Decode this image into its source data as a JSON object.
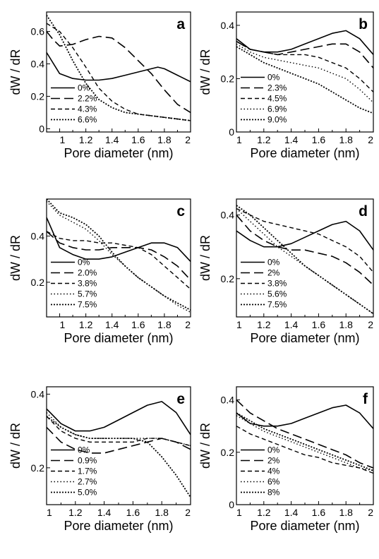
{
  "chart_data": [
    {
      "type": "line",
      "panel": "a",
      "xlabel": "Pore diameter (nm)",
      "ylabel": "dW / dR",
      "xlim": [
        0.9,
        2.0
      ],
      "ylim": [
        -0.02,
        0.72
      ],
      "x_ticks": [
        1,
        1.2,
        1.4,
        1.6,
        1.8,
        2
      ],
      "x_tick_labels": [
        "1",
        "1.2",
        "1.4",
        "1.6",
        "1.8",
        "2"
      ],
      "y_ticks": [
        0,
        0.2,
        0.4,
        0.6
      ],
      "y_tick_labels": [
        "0",
        "0.2",
        "0.4",
        "0.6"
      ],
      "legend_position": "bottom-left",
      "series": [
        {
          "name": "0%",
          "style": "solid",
          "x": [
            0.9,
            1.0,
            1.1,
            1.2,
            1.3,
            1.4,
            1.5,
            1.6,
            1.7,
            1.75,
            1.8,
            1.9,
            2.0
          ],
          "y": [
            0.47,
            0.34,
            0.31,
            0.3,
            0.3,
            0.31,
            0.33,
            0.35,
            0.37,
            0.38,
            0.37,
            0.33,
            0.29
          ]
        },
        {
          "name": "2.2%",
          "style": "long-dash",
          "x": [
            0.9,
            0.95,
            1.0,
            1.1,
            1.2,
            1.3,
            1.4,
            1.5,
            1.6,
            1.7,
            1.8,
            1.9,
            2.0
          ],
          "y": [
            0.6,
            0.55,
            0.51,
            0.52,
            0.55,
            0.57,
            0.56,
            0.5,
            0.42,
            0.34,
            0.24,
            0.15,
            0.1
          ]
        },
        {
          "name": "4.3%",
          "style": "short-dash",
          "x": [
            0.9,
            1.0,
            1.1,
            1.2,
            1.3,
            1.4,
            1.5,
            1.6,
            1.7,
            1.8,
            1.9,
            2.0
          ],
          "y": [
            0.65,
            0.6,
            0.5,
            0.38,
            0.25,
            0.17,
            0.12,
            0.09,
            0.08,
            0.07,
            0.06,
            0.05
          ]
        },
        {
          "name": "6.6%",
          "style": "dotted",
          "x": [
            0.9,
            1.0,
            1.1,
            1.2,
            1.3,
            1.4,
            1.5,
            1.6,
            1.7,
            1.8,
            1.9,
            2.0
          ],
          "y": [
            0.7,
            0.58,
            0.42,
            0.28,
            0.18,
            0.13,
            0.1,
            0.09,
            0.08,
            0.07,
            0.06,
            0.05
          ]
        }
      ]
    },
    {
      "type": "line",
      "panel": "b",
      "xlabel": "Pore diameter (nm)",
      "ylabel": "dW / dR",
      "xlim": [
        1.0,
        2.0
      ],
      "ylim": [
        0.0,
        0.45
      ],
      "x_ticks": [
        1,
        1.2,
        1.4,
        1.6,
        1.8,
        2
      ],
      "x_tick_labels": [
        "1",
        "1.2",
        "1.4",
        "1.6",
        "1.8",
        "2"
      ],
      "y_ticks": [
        0,
        0.2,
        0.4
      ],
      "y_tick_labels": [
        "0",
        "0.2",
        "0.4"
      ],
      "legend_position": "bottom-left",
      "series": [
        {
          "name": "0%",
          "style": "solid",
          "x": [
            1.0,
            1.1,
            1.2,
            1.3,
            1.4,
            1.5,
            1.6,
            1.7,
            1.8,
            1.9,
            2.0
          ],
          "y": [
            0.35,
            0.31,
            0.3,
            0.3,
            0.31,
            0.33,
            0.35,
            0.37,
            0.38,
            0.35,
            0.29
          ]
        },
        {
          "name": "2.3%",
          "style": "long-dash",
          "x": [
            1.0,
            1.1,
            1.2,
            1.3,
            1.4,
            1.5,
            1.6,
            1.7,
            1.8,
            1.9,
            2.0
          ],
          "y": [
            0.34,
            0.31,
            0.3,
            0.29,
            0.3,
            0.31,
            0.32,
            0.33,
            0.33,
            0.3,
            0.24
          ]
        },
        {
          "name": "4.5%",
          "style": "short-dash",
          "x": [
            1.0,
            1.1,
            1.2,
            1.3,
            1.4,
            1.5,
            1.6,
            1.7,
            1.8,
            1.9,
            2.0
          ],
          "y": [
            0.34,
            0.31,
            0.3,
            0.29,
            0.29,
            0.29,
            0.28,
            0.26,
            0.24,
            0.2,
            0.15
          ]
        },
        {
          "name": "6.9%",
          "style": "fine-dot",
          "x": [
            1.0,
            1.1,
            1.2,
            1.3,
            1.4,
            1.5,
            1.6,
            1.7,
            1.8,
            1.9,
            2.0
          ],
          "y": [
            0.33,
            0.3,
            0.28,
            0.27,
            0.26,
            0.25,
            0.24,
            0.22,
            0.2,
            0.16,
            0.11
          ]
        },
        {
          "name": "9.0%",
          "style": "dotted",
          "x": [
            1.0,
            1.1,
            1.2,
            1.3,
            1.4,
            1.5,
            1.6,
            1.7,
            1.8,
            1.9,
            2.0
          ],
          "y": [
            0.32,
            0.29,
            0.26,
            0.24,
            0.22,
            0.2,
            0.18,
            0.15,
            0.12,
            0.09,
            0.07
          ]
        }
      ]
    },
    {
      "type": "line",
      "panel": "c",
      "xlabel": "Pore diameter (nm)",
      "ylabel": "dW / dR",
      "xlim": [
        0.9,
        2.0
      ],
      "ylim": [
        0.05,
        0.56
      ],
      "x_ticks": [
        1,
        1.2,
        1.4,
        1.6,
        1.8,
        2
      ],
      "x_tick_labels": [
        "1",
        "1.2",
        "1.4",
        "1.6",
        "1.8",
        "2"
      ],
      "y_ticks": [
        0.2,
        0.4
      ],
      "y_tick_labels": [
        "0.2",
        "0.4"
      ],
      "legend_position": "bottom-left",
      "series": [
        {
          "name": "0%",
          "style": "solid",
          "x": [
            0.9,
            1.0,
            1.1,
            1.2,
            1.3,
            1.4,
            1.5,
            1.6,
            1.7,
            1.8,
            1.9,
            2.0
          ],
          "y": [
            0.48,
            0.35,
            0.32,
            0.3,
            0.3,
            0.31,
            0.33,
            0.35,
            0.37,
            0.37,
            0.35,
            0.29
          ]
        },
        {
          "name": "2.0%",
          "style": "long-dash",
          "x": [
            0.9,
            1.0,
            1.1,
            1.2,
            1.3,
            1.4,
            1.5,
            1.6,
            1.7,
            1.8,
            1.9,
            2.0
          ],
          "y": [
            0.42,
            0.37,
            0.35,
            0.34,
            0.34,
            0.35,
            0.35,
            0.35,
            0.34,
            0.31,
            0.27,
            0.21
          ]
        },
        {
          "name": "3.8%",
          "style": "short-dash",
          "x": [
            0.9,
            1.0,
            1.1,
            1.2,
            1.3,
            1.4,
            1.5,
            1.6,
            1.7,
            1.8,
            1.9,
            2.0
          ],
          "y": [
            0.42,
            0.39,
            0.38,
            0.38,
            0.37,
            0.37,
            0.36,
            0.35,
            0.32,
            0.27,
            0.22,
            0.17
          ]
        },
        {
          "name": "5.7%",
          "style": "fine-dot",
          "x": [
            0.9,
            1.0,
            1.1,
            1.2,
            1.3,
            1.4,
            1.5,
            1.6,
            1.7,
            1.8,
            1.9,
            2.0
          ],
          "y": [
            0.55,
            0.49,
            0.46,
            0.43,
            0.38,
            0.32,
            0.27,
            0.22,
            0.18,
            0.14,
            0.1,
            0.07
          ]
        },
        {
          "name": "7.5%",
          "style": "dotted",
          "x": [
            0.9,
            1.0,
            1.1,
            1.2,
            1.3,
            1.4,
            1.5,
            1.6,
            1.7,
            1.8,
            1.9,
            2.0
          ],
          "y": [
            0.56,
            0.5,
            0.48,
            0.45,
            0.4,
            0.33,
            0.27,
            0.22,
            0.18,
            0.14,
            0.11,
            0.08
          ]
        }
      ]
    },
    {
      "type": "line",
      "panel": "d",
      "xlabel": "Pore diameter (nm)",
      "ylabel": "dW / dR",
      "xlim": [
        1.0,
        2.0
      ],
      "ylim": [
        0.08,
        0.45
      ],
      "x_ticks": [
        1,
        1.2,
        1.4,
        1.6,
        1.8,
        2
      ],
      "x_tick_labels": [
        "1",
        "1.2",
        "1.4",
        "1.6",
        "1.8",
        "2"
      ],
      "y_ticks": [
        0.2,
        0.4
      ],
      "y_tick_labels": [
        "0.2",
        "0.4"
      ],
      "legend_position": "bottom-left",
      "series": [
        {
          "name": "0%",
          "style": "solid",
          "x": [
            1.0,
            1.1,
            1.2,
            1.3,
            1.4,
            1.5,
            1.6,
            1.7,
            1.8,
            1.9,
            2.0
          ],
          "y": [
            0.35,
            0.32,
            0.3,
            0.3,
            0.31,
            0.33,
            0.35,
            0.37,
            0.38,
            0.35,
            0.29
          ]
        },
        {
          "name": "2%",
          "style": "long-dash",
          "x": [
            1.0,
            1.1,
            1.2,
            1.3,
            1.4,
            1.5,
            1.6,
            1.7,
            1.8,
            1.9,
            2.0
          ],
          "y": [
            0.4,
            0.35,
            0.32,
            0.3,
            0.29,
            0.29,
            0.28,
            0.27,
            0.25,
            0.22,
            0.18
          ]
        },
        {
          "name": "3.8%",
          "style": "short-dash",
          "x": [
            1.0,
            1.1,
            1.2,
            1.3,
            1.4,
            1.5,
            1.6,
            1.7,
            1.8,
            1.9,
            2.0
          ],
          "y": [
            0.42,
            0.4,
            0.38,
            0.37,
            0.36,
            0.35,
            0.34,
            0.32,
            0.3,
            0.27,
            0.22
          ]
        },
        {
          "name": "5.6%",
          "style": "fine-dot",
          "x": [
            1.0,
            1.1,
            1.2,
            1.3,
            1.4,
            1.5,
            1.6,
            1.7,
            1.8,
            1.9,
            2.0
          ],
          "y": [
            0.42,
            0.38,
            0.34,
            0.3,
            0.27,
            0.24,
            0.21,
            0.18,
            0.15,
            0.12,
            0.09
          ]
        },
        {
          "name": "7.5%",
          "style": "dotted",
          "x": [
            1.0,
            1.1,
            1.2,
            1.3,
            1.4,
            1.5,
            1.6,
            1.7,
            1.8,
            1.9,
            2.0
          ],
          "y": [
            0.43,
            0.4,
            0.36,
            0.32,
            0.28,
            0.24,
            0.21,
            0.18,
            0.15,
            0.12,
            0.09
          ]
        }
      ]
    },
    {
      "type": "line",
      "panel": "e",
      "xlabel": "Pore diameter (nm)",
      "ylabel": "dW / dR",
      "xlim": [
        1.0,
        2.0
      ],
      "ylim": [
        0.1,
        0.42
      ],
      "x_ticks": [
        1,
        1.2,
        1.4,
        1.6,
        1.8,
        2
      ],
      "x_tick_labels": [
        "1",
        "1.2",
        "1.4",
        "1.6",
        "1.8",
        "2"
      ],
      "y_ticks": [
        0.2,
        0.4
      ],
      "y_tick_labels": [
        "0.2",
        "0.4"
      ],
      "legend_position": "bottom-left",
      "series": [
        {
          "name": "0%",
          "style": "solid",
          "x": [
            1.0,
            1.1,
            1.2,
            1.3,
            1.4,
            1.5,
            1.6,
            1.7,
            1.8,
            1.9,
            2.0
          ],
          "y": [
            0.36,
            0.32,
            0.3,
            0.3,
            0.31,
            0.33,
            0.35,
            0.37,
            0.38,
            0.35,
            0.29
          ]
        },
        {
          "name": "0.9%",
          "style": "long-dash",
          "x": [
            1.0,
            1.1,
            1.2,
            1.3,
            1.4,
            1.5,
            1.6,
            1.7,
            1.8,
            1.9,
            2.0
          ],
          "y": [
            0.31,
            0.27,
            0.25,
            0.24,
            0.24,
            0.25,
            0.26,
            0.27,
            0.28,
            0.27,
            0.25
          ]
        },
        {
          "name": "1.7%",
          "style": "short-dash",
          "x": [
            1.0,
            1.1,
            1.2,
            1.3,
            1.4,
            1.5,
            1.6,
            1.7,
            1.8,
            1.9,
            2.0
          ],
          "y": [
            0.34,
            0.3,
            0.28,
            0.27,
            0.27,
            0.27,
            0.27,
            0.28,
            0.28,
            0.27,
            0.26
          ]
        },
        {
          "name": "2.7%",
          "style": "fine-dot",
          "x": [
            1.0,
            1.1,
            1.2,
            1.3,
            1.4,
            1.5,
            1.6,
            1.7,
            1.8,
            1.9,
            2.0
          ],
          "y": [
            0.35,
            0.31,
            0.29,
            0.28,
            0.28,
            0.28,
            0.28,
            0.28,
            0.28,
            0.27,
            0.26
          ]
        },
        {
          "name": "5.0%",
          "style": "dotted",
          "x": [
            1.0,
            1.1,
            1.2,
            1.3,
            1.4,
            1.5,
            1.6,
            1.7,
            1.8,
            1.9,
            2.0
          ],
          "y": [
            0.34,
            0.31,
            0.29,
            0.28,
            0.28,
            0.28,
            0.28,
            0.27,
            0.23,
            0.18,
            0.12
          ]
        }
      ]
    },
    {
      "type": "line",
      "panel": "f",
      "xlabel": "Pore diameter (nm)",
      "ylabel": "dW / dR",
      "xlim": [
        1.0,
        2.0
      ],
      "ylim": [
        0.0,
        0.45
      ],
      "x_ticks": [
        1,
        1.2,
        1.4,
        1.6,
        1.8,
        2
      ],
      "x_tick_labels": [
        "1",
        "1.2",
        "1.4",
        "1.6",
        "1.8",
        "2"
      ],
      "y_ticks": [
        0,
        0.2,
        0.4
      ],
      "y_tick_labels": [
        "0",
        "0.2",
        "0.4"
      ],
      "legend_position": "bottom-left",
      "series": [
        {
          "name": "0%",
          "style": "solid",
          "x": [
            1.0,
            1.1,
            1.2,
            1.3,
            1.4,
            1.5,
            1.6,
            1.7,
            1.8,
            1.9,
            2.0
          ],
          "y": [
            0.35,
            0.31,
            0.3,
            0.3,
            0.31,
            0.33,
            0.35,
            0.37,
            0.38,
            0.35,
            0.29
          ]
        },
        {
          "name": "2%",
          "style": "long-dash",
          "x": [
            1.0,
            1.1,
            1.2,
            1.3,
            1.4,
            1.5,
            1.6,
            1.7,
            1.8,
            1.9,
            2.0
          ],
          "y": [
            0.4,
            0.35,
            0.32,
            0.29,
            0.27,
            0.25,
            0.23,
            0.21,
            0.19,
            0.16,
            0.14
          ]
        },
        {
          "name": "4%",
          "style": "short-dash",
          "x": [
            1.0,
            1.1,
            1.2,
            1.3,
            1.4,
            1.5,
            1.6,
            1.7,
            1.8,
            1.9,
            2.0
          ],
          "y": [
            0.3,
            0.27,
            0.25,
            0.23,
            0.21,
            0.19,
            0.18,
            0.16,
            0.15,
            0.14,
            0.12
          ]
        },
        {
          "name": "6%",
          "style": "fine-dot",
          "x": [
            1.0,
            1.1,
            1.2,
            1.3,
            1.4,
            1.5,
            1.6,
            1.7,
            1.8,
            1.9,
            2.0
          ],
          "y": [
            0.34,
            0.31,
            0.28,
            0.26,
            0.24,
            0.22,
            0.2,
            0.18,
            0.16,
            0.14,
            0.13
          ]
        },
        {
          "name": "8%",
          "style": "dotted",
          "x": [
            1.0,
            1.1,
            1.2,
            1.3,
            1.4,
            1.5,
            1.6,
            1.7,
            1.8,
            1.9,
            2.0
          ],
          "y": [
            0.35,
            0.32,
            0.29,
            0.27,
            0.25,
            0.23,
            0.21,
            0.19,
            0.17,
            0.15,
            0.13
          ]
        }
      ]
    }
  ]
}
